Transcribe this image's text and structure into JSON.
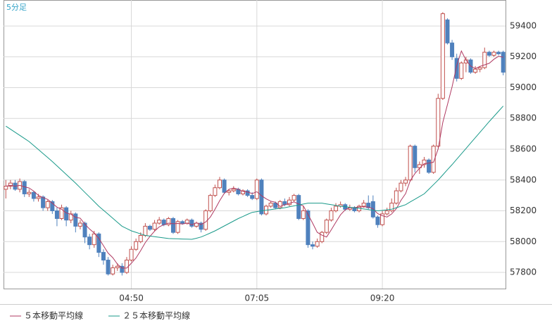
{
  "chart_data": {
    "type": "candlestick",
    "title": "5分足",
    "categories": [
      null,
      null,
      null,
      null,
      null,
      null,
      null,
      null,
      null,
      null,
      null,
      null,
      null,
      null,
      null,
      null,
      null,
      null,
      null,
      null,
      null,
      null,
      null,
      null,
      null,
      null,
      null,
      "04:50",
      null,
      null,
      null,
      null,
      null,
      null,
      null,
      null,
      null,
      null,
      null,
      null,
      null,
      null,
      null,
      null,
      null,
      null,
      null,
      null,
      null,
      null,
      null,
      null,
      null,
      null,
      "07:05",
      null,
      null,
      null,
      null,
      null,
      null,
      null,
      null,
      null,
      null,
      null,
      null,
      null,
      null,
      null,
      null,
      null,
      null,
      null,
      null,
      null,
      null,
      null,
      null,
      null,
      null,
      "09:20",
      null,
      null,
      null,
      null,
      null,
      null,
      null,
      null,
      null,
      null,
      null,
      null,
      null,
      null,
      null,
      null,
      null,
      null,
      null,
      null,
      null,
      null,
      null,
      null,
      null,
      null
    ],
    "ohlc": [
      [
        58340,
        58400,
        58280,
        58360
      ],
      [
        58360,
        58400,
        58340,
        58380
      ],
      [
        58380,
        58400,
        58330,
        58340
      ],
      [
        58340,
        58410,
        58320,
        58390
      ],
      [
        58390,
        58400,
        58290,
        58310
      ],
      [
        58310,
        58340,
        58290,
        58320
      ],
      [
        58320,
        58330,
        58260,
        58280
      ],
      [
        58280,
        58310,
        58260,
        58290
      ],
      [
        58290,
        58300,
        58200,
        58220
      ],
      [
        58220,
        58270,
        58200,
        58260
      ],
      [
        58260,
        58270,
        58180,
        58200
      ],
      [
        58200,
        58220,
        58100,
        58150
      ],
      [
        58150,
        58240,
        58140,
        58220
      ],
      [
        58220,
        58230,
        58100,
        58140
      ],
      [
        58140,
        58200,
        58120,
        58180
      ],
      [
        58180,
        58190,
        58060,
        58100
      ],
      [
        58100,
        58140,
        58080,
        58120
      ],
      [
        58120,
        58130,
        57990,
        58030
      ],
      [
        58030,
        58050,
        57950,
        57980
      ],
      [
        57980,
        58070,
        57960,
        58050
      ],
      [
        58050,
        58060,
        57900,
        57930
      ],
      [
        57930,
        57950,
        57850,
        57880
      ],
      [
        57880,
        57900,
        57780,
        57790
      ],
      [
        57790,
        57850,
        57780,
        57830
      ],
      [
        57830,
        57860,
        57810,
        57840
      ],
      [
        57840,
        57860,
        57780,
        57800
      ],
      [
        57800,
        57900,
        57790,
        57880
      ],
      [
        57880,
        57970,
        57870,
        57950
      ],
      [
        57950,
        58020,
        57940,
        58000
      ],
      [
        58000,
        58060,
        57990,
        58040
      ],
      [
        58040,
        58120,
        58030,
        58100
      ],
      [
        58100,
        58110,
        58070,
        58080
      ],
      [
        58080,
        58140,
        58070,
        58120
      ],
      [
        58120,
        58160,
        58110,
        58140
      ],
      [
        58140,
        58150,
        58100,
        58110
      ],
      [
        58110,
        58160,
        58100,
        58150
      ],
      [
        58150,
        58160,
        58050,
        58060
      ],
      [
        58060,
        58140,
        58050,
        58130
      ],
      [
        58130,
        58140,
        58110,
        58120
      ],
      [
        58120,
        58150,
        58110,
        58140
      ],
      [
        58140,
        58150,
        58090,
        58100
      ],
      [
        58100,
        58130,
        58090,
        58120
      ],
      [
        58120,
        58130,
        58060,
        58080
      ],
      [
        58080,
        58210,
        58070,
        58200
      ],
      [
        58200,
        58310,
        58190,
        58300
      ],
      [
        58300,
        58370,
        58290,
        58350
      ],
      [
        58350,
        58420,
        58340,
        58400
      ],
      [
        58400,
        58410,
        58310,
        58320
      ],
      [
        58320,
        58340,
        58300,
        58330
      ],
      [
        58330,
        58360,
        58320,
        58340
      ],
      [
        58340,
        58350,
        58300,
        58310
      ],
      [
        58310,
        58340,
        58300,
        58330
      ],
      [
        58330,
        58340,
        58290,
        58300
      ],
      [
        58300,
        58320,
        58270,
        58280
      ],
      [
        58280,
        58410,
        58270,
        58400
      ],
      [
        58400,
        58410,
        58170,
        58180
      ],
      [
        58180,
        58240,
        58170,
        58230
      ],
      [
        58230,
        58260,
        58220,
        58250
      ],
      [
        58250,
        58260,
        58210,
        58220
      ],
      [
        58220,
        58270,
        58210,
        58260
      ],
      [
        58260,
        58280,
        58230,
        58240
      ],
      [
        58240,
        58290,
        58230,
        58270
      ],
      [
        58270,
        58310,
        58260,
        58300
      ],
      [
        58300,
        58310,
        58140,
        58150
      ],
      [
        58150,
        58230,
        58140,
        58200
      ],
      [
        58200,
        58210,
        57960,
        57980
      ],
      [
        57980,
        58000,
        57950,
        57970
      ],
      [
        57970,
        58020,
        57960,
        58000
      ],
      [
        58000,
        58070,
        57990,
        58060
      ],
      [
        58060,
        58150,
        58050,
        58140
      ],
      [
        58140,
        58220,
        58130,
        58200
      ],
      [
        58200,
        58250,
        58190,
        58230
      ],
      [
        58230,
        58260,
        58220,
        58240
      ],
      [
        58240,
        58250,
        58200,
        58210
      ],
      [
        58210,
        58240,
        58200,
        58220
      ],
      [
        58220,
        58230,
        58190,
        58200
      ],
      [
        58200,
        58240,
        58190,
        58230
      ],
      [
        58230,
        58270,
        58220,
        58250
      ],
      [
        58250,
        58300,
        58210,
        58220
      ],
      [
        58260,
        58300,
        58150,
        58160
      ],
      [
        58160,
        58170,
        58090,
        58110
      ],
      [
        58110,
        58200,
        58100,
        58180
      ],
      [
        58180,
        58220,
        58170,
        58200
      ],
      [
        58200,
        58280,
        58190,
        58250
      ],
      [
        58250,
        58350,
        58240,
        58330
      ],
      [
        58330,
        58400,
        58320,
        58380
      ],
      [
        58380,
        58420,
        58360,
        58400
      ],
      [
        58400,
        58630,
        58390,
        58620
      ],
      [
        58620,
        58630,
        58450,
        58480
      ],
      [
        58480,
        58520,
        58440,
        58500
      ],
      [
        58500,
        58550,
        58480,
        58530
      ],
      [
        58530,
        58540,
        58440,
        58450
      ],
      [
        58450,
        58630,
        58440,
        58620
      ],
      [
        58620,
        58960,
        58610,
        58930
      ],
      [
        58930,
        59490,
        58920,
        59480
      ],
      [
        59440,
        59450,
        59280,
        59290
      ],
      [
        59290,
        59310,
        59180,
        59200
      ],
      [
        59190,
        59220,
        59040,
        59060
      ],
      [
        59060,
        59170,
        59050,
        59160
      ],
      [
        59160,
        59200,
        59100,
        59180
      ],
      [
        59180,
        59190,
        59090,
        59100
      ],
      [
        59100,
        59140,
        59090,
        59120
      ],
      [
        59120,
        59140,
        59100,
        59130
      ],
      [
        59130,
        59260,
        59120,
        59230
      ],
      [
        59230,
        59240,
        59200,
        59210
      ],
      [
        59210,
        59240,
        59200,
        59230
      ],
      [
        59230,
        59240,
        59210,
        59220
      ],
      [
        59230,
        59240,
        59080,
        59100
      ]
    ],
    "up_color": "#c0504d",
    "down_color": "#4f81bd",
    "series": [
      {
        "name": "５本移動平均線",
        "color": "#b03a62",
        "values": [
          58360,
          58365,
          58360,
          58365,
          58356,
          58348,
          58328,
          58300,
          58286,
          58274,
          58250,
          58224,
          58210,
          58186,
          58178,
          58158,
          58152,
          58114,
          58082,
          58056,
          58022,
          57974,
          57926,
          57896,
          57854,
          57828,
          57828,
          57860,
          57894,
          57942,
          57994,
          58034,
          58068,
          58096,
          58110,
          58120,
          58116,
          58118,
          58114,
          58120,
          58110,
          58122,
          58112,
          58128,
          58160,
          58210,
          58266,
          58314,
          58340,
          58348,
          58340,
          58326,
          58322,
          58312,
          58324,
          58298,
          58278,
          58262,
          58256,
          58228,
          58240,
          58248,
          58258,
          58244,
          58232,
          58178,
          58120,
          58060,
          58042,
          58030,
          58076,
          58126,
          58174,
          58206,
          58220,
          58222,
          58224,
          58226,
          58224,
          58214,
          58182,
          58168,
          58160,
          58180,
          58214,
          58268,
          58312,
          58396,
          58442,
          58476,
          58506,
          58510,
          58516,
          58602,
          58774,
          58890,
          59006,
          59144,
          59238,
          59178,
          59140,
          59124,
          59138,
          59148,
          59158,
          59184,
          59204,
          59198
        ]
      },
      {
        "name": "２５本移動平均線",
        "color": "#1a9a8a",
        "values": [
          58750,
          58730,
          58710,
          58690,
          58670,
          58650,
          58624,
          58598,
          58572,
          58546,
          58520,
          58492,
          58464,
          58436,
          58408,
          58380,
          58350,
          58320,
          58290,
          58260,
          58230,
          58204,
          58178,
          58152,
          58126,
          58100,
          58085,
          58070,
          58060,
          58050,
          58040,
          58036,
          58032,
          58028,
          58024,
          58020,
          58019,
          58018,
          58017,
          58016,
          58015,
          58022,
          58030,
          58043,
          58056,
          58070,
          58086,
          58102,
          58118,
          58134,
          58150,
          58163,
          58177,
          58190,
          58195,
          58200,
          58204,
          58208,
          58212,
          58216,
          58220,
          58226,
          58232,
          58238,
          58244,
          58250,
          58250,
          58250,
          58250,
          58245,
          58240,
          58235,
          58230,
          58227,
          58223,
          58220,
          58216,
          58212,
          58208,
          58204,
          58200,
          58203,
          58207,
          58210,
          58220,
          58230,
          58240,
          58258,
          58275,
          58293,
          58310,
          58340,
          58370,
          58400,
          58433,
          58467,
          58500,
          58535,
          58570,
          58605,
          58640,
          58675,
          58710,
          58745,
          58780,
          58813,
          58847,
          58880
        ]
      }
    ],
    "ylim": [
      57695,
      59569
    ],
    "yticks": [
      57800,
      58000,
      58200,
      58400,
      58600,
      58800,
      59000,
      59200,
      59400
    ],
    "grid": true
  }
}
